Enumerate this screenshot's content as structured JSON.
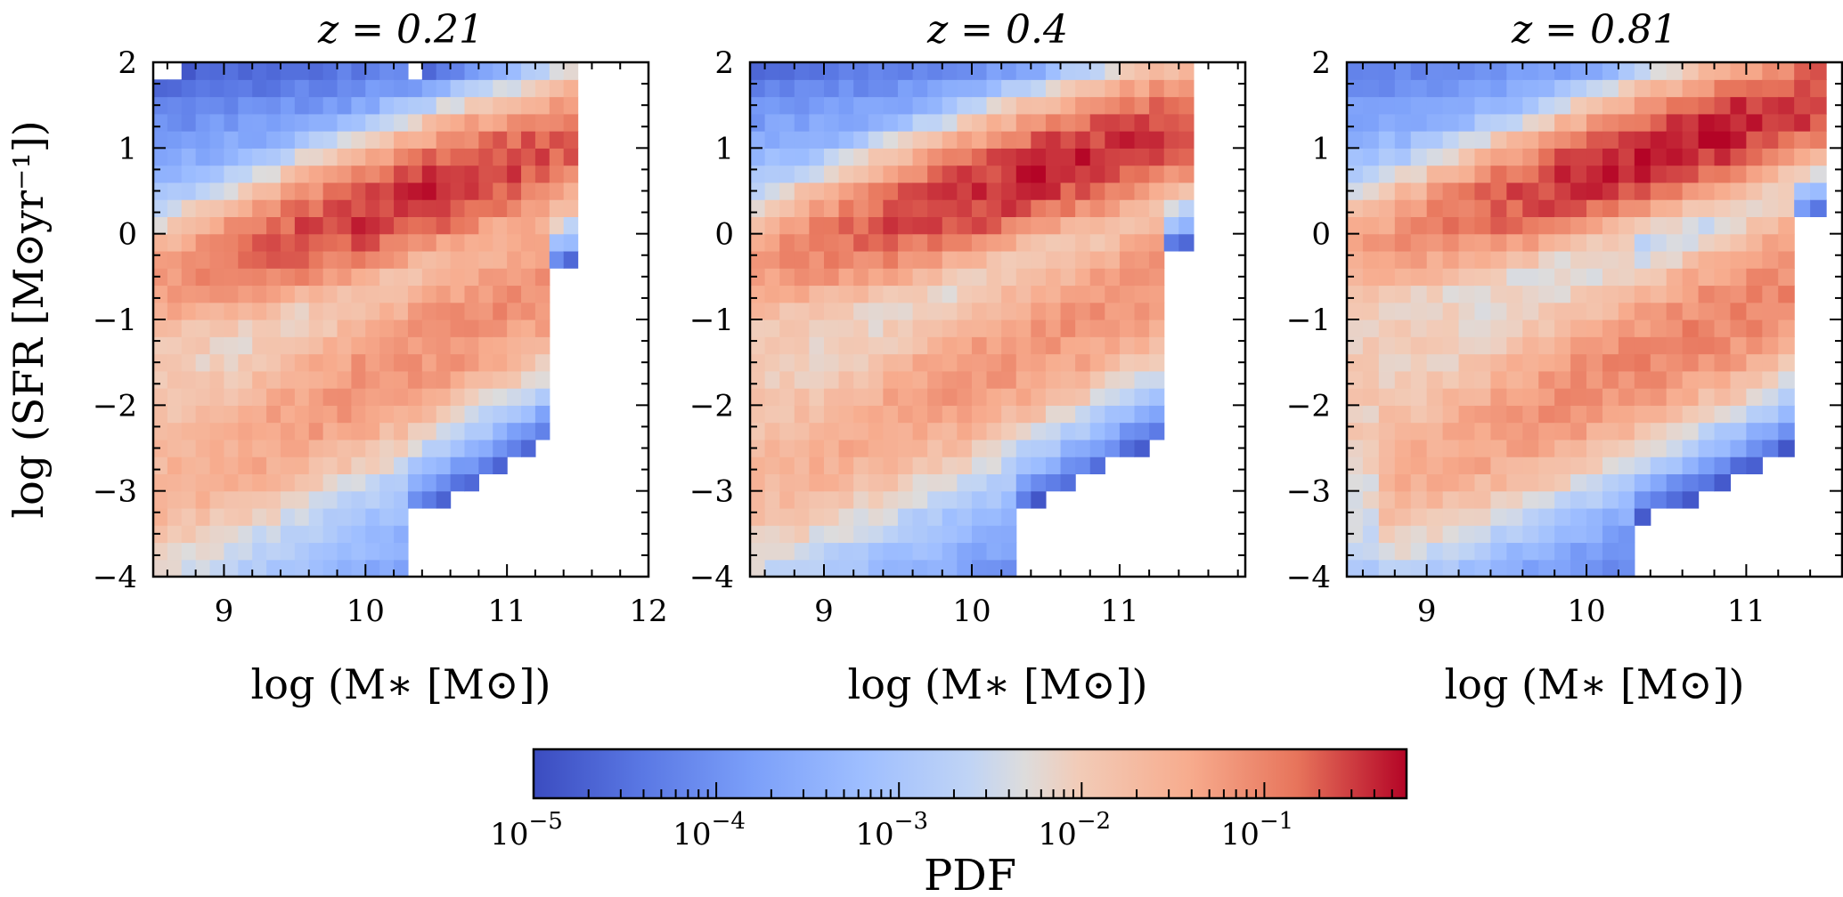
{
  "chart_data": {
    "type": "heatmap",
    "colormap": "coolwarm",
    "colorbar": {
      "label": "PDF",
      "scale": "log",
      "range": [
        1e-05,
        0.6
      ],
      "ticks": [
        1e-05,
        0.0001,
        0.001,
        0.01,
        0.1
      ],
      "tick_labels": [
        {
          "base": "10",
          "exp": "−5"
        },
        {
          "base": "10",
          "exp": "−4"
        },
        {
          "base": "10",
          "exp": "−3"
        },
        {
          "base": "10",
          "exp": "−2"
        },
        {
          "base": "10",
          "exp": "−1"
        }
      ],
      "placement": "bottom-center"
    },
    "ylabel": "log (SFR [M⊙yr⁻¹])",
    "xlabel": "log (M∗ [M⊙])",
    "panels": [
      {
        "title": "z = 0.21",
        "xlim": [
          8.5,
          12.0
        ],
        "ylim": [
          -4,
          2
        ],
        "xticks": [
          "9",
          "10",
          "11",
          "12"
        ],
        "xtick_values": [
          9,
          10,
          11,
          12
        ],
        "yticks": [
          "−4",
          "−3",
          "−2",
          "−1",
          "0",
          "1",
          "2"
        ],
        "ytick_values": [
          -4,
          -3,
          -2,
          -1,
          0,
          1,
          2
        ],
        "xmax_data": 11.9,
        "sf_sequence": {
          "x0": 10.4,
          "y0": 0.45,
          "slope": 0.55,
          "width": 0.32,
          "peak": 0.35,
          "xmin": 8.5,
          "xmax": 11.5,
          "xscale": 0.95
        },
        "quenched": {
          "x0": 10.8,
          "y0": -1.0,
          "slope": 0.9,
          "width": 0.45,
          "peak": 0.08,
          "xmin": 8.5,
          "xmax": 11.3,
          "xscale": 1.25
        },
        "max_pdf": 0.6
      },
      {
        "title": "z = 0.4",
        "xlim": [
          8.5,
          11.85
        ],
        "ylim": [
          -4,
          2
        ],
        "xticks": [
          "9",
          "10",
          "11"
        ],
        "xtick_values": [
          9,
          10,
          11
        ],
        "yticks": [
          "−4",
          "−3",
          "−2",
          "−1",
          "0",
          "1",
          "2"
        ],
        "ytick_values": [
          -4,
          -3,
          -2,
          -1,
          0,
          1,
          2
        ],
        "xmax_data": 11.8,
        "sf_sequence": {
          "x0": 10.45,
          "y0": 0.7,
          "slope": 0.55,
          "width": 0.32,
          "peak": 0.4,
          "xmin": 8.5,
          "xmax": 11.5,
          "xscale": 0.95
        },
        "quenched": {
          "x0": 10.8,
          "y0": -0.95,
          "slope": 0.9,
          "width": 0.45,
          "peak": 0.07,
          "xmin": 8.5,
          "xmax": 11.3,
          "xscale": 1.25
        },
        "max_pdf": 0.6
      },
      {
        "title": "z = 0.81",
        "xlim": [
          8.5,
          11.6
        ],
        "ylim": [
          -4,
          2
        ],
        "xticks": [
          "9",
          "10",
          "11"
        ],
        "xtick_values": [
          9,
          10,
          11
        ],
        "yticks": [
          "−4",
          "−3",
          "−2",
          "−1",
          "0",
          "1",
          "2"
        ],
        "ytick_values": [
          -4,
          -3,
          -2,
          -1,
          0,
          1,
          2
        ],
        "xmax_data": 11.6,
        "sf_sequence": {
          "x0": 10.6,
          "y0": 1.05,
          "slope": 0.6,
          "width": 0.3,
          "peak": 0.45,
          "xmin": 8.5,
          "xmax": 11.5,
          "xscale": 0.9
        },
        "quenched": {
          "x0": 10.85,
          "y0": -1.0,
          "slope": 0.9,
          "width": 0.45,
          "peak": 0.1,
          "xmin": 8.7,
          "xmax": 11.3,
          "xscale": 1.2
        },
        "max_pdf": 0.6
      }
    ]
  }
}
